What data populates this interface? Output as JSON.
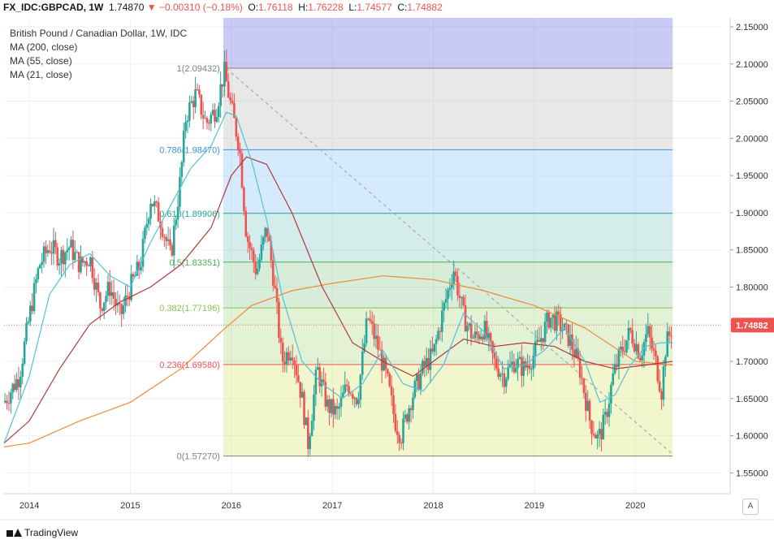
{
  "header": {
    "symbol": "FX_IDC:GBPCAD, 1W",
    "last": "1.74870",
    "change": "−0.00310 (−0.18%)",
    "open_label": "O:",
    "open": "1.76118",
    "high_label": "H:",
    "high": "1.76228",
    "low_label": "L:",
    "low": "1.74577",
    "close_label": "C:",
    "close": "1.74882"
  },
  "legend": {
    "title": "British Pound / Canadian Dollar, 1W, IDC",
    "ma200": "MA (200, close)",
    "ma55": "MA (55, close)",
    "ma21": "MA (21, close)"
  },
  "branding": {
    "name": "TradingView",
    "logo_icon": "tradingview-logo-icon"
  },
  "controls": {
    "auto_scale": "A"
  },
  "colors": {
    "up": "#26a69a",
    "down": "#ef5350",
    "ma200": "#f0883e",
    "ma55": "#b03a3a",
    "ma21": "#4fc3d9",
    "fib_lines": [
      "#8e8e8e",
      "#ef5350",
      "#8bc34a",
      "#4caf50",
      "#26a69a",
      "#3f8fd6",
      "#7c7c7c"
    ],
    "price_tag": "#ef5350"
  },
  "chart_data": {
    "type": "candlestick",
    "title": "British Pound / Canadian Dollar, 1W, IDC",
    "x_tick_labels": [
      "2014",
      "2015",
      "2016",
      "2017",
      "2018",
      "2019",
      "2020"
    ],
    "x_tick_years": [
      2014,
      2015,
      2016,
      2017,
      2018,
      2019,
      2020
    ],
    "x_range": [
      2013.75,
      2020.85
    ],
    "y_tick_labels": [
      "1.55000",
      "1.60000",
      "1.65000",
      "1.70000",
      "1.75000",
      "1.80000",
      "1.85000",
      "1.90000",
      "1.95000",
      "2.00000",
      "2.05000",
      "2.10000",
      "2.15000"
    ],
    "y_ticks": [
      1.55,
      1.6,
      1.65,
      1.7,
      1.75,
      1.8,
      1.85,
      1.9,
      1.95,
      2.0,
      2.05,
      2.1,
      2.15
    ],
    "ylim": [
      1.522,
      2.162
    ],
    "last_price_label": "1.74882",
    "last_price": 1.74882,
    "fibonacci": {
      "levels": [
        {
          "ratio": "1",
          "price": 2.09432,
          "label": "1(2.09432)"
        },
        {
          "ratio": "0.786",
          "price": 1.9847,
          "label": "0.786(1.98470)"
        },
        {
          "ratio": "0.618",
          "price": 1.89906,
          "label": "0.618(1.89906)"
        },
        {
          "ratio": "0.5",
          "price": 1.83351,
          "label": "0.5(1.83351)"
        },
        {
          "ratio": "0.382",
          "price": 1.77196,
          "label": "0.382(1.77196)"
        },
        {
          "ratio": "0.236",
          "price": 1.6958,
          "label": "0.236(1.69580)"
        },
        {
          "ratio": "0",
          "price": 1.5727,
          "label": "0(1.57270)"
        }
      ],
      "x_start": 2015.92,
      "x_end": 2020.37,
      "zone_colors": [
        "rgba(180,180,180,0.30)",
        "rgba(66,165,245,0.22)",
        "rgba(38,166,154,0.20)",
        "rgba(76,175,80,0.22)",
        "rgba(139,195,74,0.24)",
        "rgba(205,220,57,0.25)",
        "rgba(239,83,80,0.25)"
      ],
      "top_zone_color": "rgba(103,103,230,0.35)",
      "top_zone_ceiling": 2.162
    },
    "trendline": {
      "x": [
        2015.95,
        2020.37
      ],
      "y": [
        2.094,
        1.575
      ]
    },
    "price_path": [
      [
        2013.75,
        1.645
      ],
      [
        2013.9,
        1.68
      ],
      [
        2014.0,
        1.76
      ],
      [
        2014.1,
        1.83
      ],
      [
        2014.2,
        1.855
      ],
      [
        2014.3,
        1.84
      ],
      [
        2014.4,
        1.855
      ],
      [
        2014.5,
        1.83
      ],
      [
        2014.6,
        1.84
      ],
      [
        2014.7,
        1.775
      ],
      [
        2014.8,
        1.8
      ],
      [
        2014.9,
        1.76
      ],
      [
        2015.0,
        1.8
      ],
      [
        2015.1,
        1.83
      ],
      [
        2015.2,
        1.92
      ],
      [
        2015.3,
        1.89
      ],
      [
        2015.4,
        1.84
      ],
      [
        2015.5,
        1.95
      ],
      [
        2015.55,
        2.03
      ],
      [
        2015.65,
        2.06
      ],
      [
        2015.75,
        2.02
      ],
      [
        2015.85,
        2.04
      ],
      [
        2015.93,
        2.09
      ],
      [
        2016.0,
        2.04
      ],
      [
        2016.08,
        1.99
      ],
      [
        2016.15,
        1.87
      ],
      [
        2016.25,
        1.82
      ],
      [
        2016.35,
        1.88
      ],
      [
        2016.42,
        1.81
      ],
      [
        2016.5,
        1.7
      ],
      [
        2016.6,
        1.72
      ],
      [
        2016.7,
        1.65
      ],
      [
        2016.76,
        1.59
      ],
      [
        2016.85,
        1.69
      ],
      [
        2016.95,
        1.64
      ],
      [
        2017.05,
        1.63
      ],
      [
        2017.15,
        1.67
      ],
      [
        2017.25,
        1.65
      ],
      [
        2017.35,
        1.76
      ],
      [
        2017.45,
        1.72
      ],
      [
        2017.55,
        1.67
      ],
      [
        2017.62,
        1.62
      ],
      [
        2017.68,
        1.6
      ],
      [
        2017.78,
        1.65
      ],
      [
        2017.9,
        1.69
      ],
      [
        2018.0,
        1.71
      ],
      [
        2018.1,
        1.77
      ],
      [
        2018.2,
        1.825
      ],
      [
        2018.3,
        1.76
      ],
      [
        2018.4,
        1.73
      ],
      [
        2018.5,
        1.745
      ],
      [
        2018.6,
        1.7
      ],
      [
        2018.7,
        1.68
      ],
      [
        2018.8,
        1.7
      ],
      [
        2018.9,
        1.69
      ],
      [
        2019.0,
        1.71
      ],
      [
        2019.15,
        1.76
      ],
      [
        2019.25,
        1.75
      ],
      [
        2019.35,
        1.73
      ],
      [
        2019.45,
        1.69
      ],
      [
        2019.55,
        1.62
      ],
      [
        2019.63,
        1.595
      ],
      [
        2019.7,
        1.62
      ],
      [
        2019.78,
        1.68
      ],
      [
        2019.85,
        1.71
      ],
      [
        2019.95,
        1.74
      ],
      [
        2020.05,
        1.71
      ],
      [
        2020.12,
        1.74
      ],
      [
        2020.2,
        1.7
      ],
      [
        2020.26,
        1.66
      ],
      [
        2020.3,
        1.72
      ],
      [
        2020.37,
        1.749
      ]
    ],
    "series": [
      {
        "name": "MA (200, close)",
        "x": [
          2013.75,
          2014.0,
          2014.5,
          2015.0,
          2015.5,
          2015.9,
          2016.2,
          2016.6,
          2017.0,
          2017.5,
          2018.0,
          2018.5,
          2019.0,
          2019.5,
          2020.0,
          2020.37
        ],
        "y": [
          1.585,
          1.59,
          1.62,
          1.645,
          1.69,
          1.74,
          1.775,
          1.795,
          1.805,
          1.815,
          1.81,
          1.795,
          1.775,
          1.745,
          1.7,
          1.695
        ]
      },
      {
        "name": "MA (55, close)",
        "x": [
          2013.75,
          2014.0,
          2014.3,
          2014.6,
          2014.9,
          2015.2,
          2015.5,
          2015.8,
          2016.0,
          2016.15,
          2016.35,
          2016.6,
          2016.9,
          2017.2,
          2017.5,
          2017.8,
          2018.0,
          2018.3,
          2018.6,
          2018.9,
          2019.2,
          2019.5,
          2019.8,
          2020.1,
          2020.37
        ],
        "y": [
          1.59,
          1.62,
          1.69,
          1.75,
          1.78,
          1.8,
          1.83,
          1.88,
          1.95,
          1.975,
          1.965,
          1.9,
          1.8,
          1.725,
          1.7,
          1.68,
          1.7,
          1.73,
          1.72,
          1.725,
          1.72,
          1.7,
          1.69,
          1.695,
          1.7
        ]
      },
      {
        "name": "MA (21, close)",
        "x": [
          2013.75,
          2014.0,
          2014.2,
          2014.4,
          2014.6,
          2014.8,
          2015.0,
          2015.2,
          2015.4,
          2015.6,
          2015.8,
          2015.95,
          2016.05,
          2016.2,
          2016.35,
          2016.5,
          2016.7,
          2016.9,
          2017.1,
          2017.3,
          2017.5,
          2017.7,
          2017.9,
          2018.1,
          2018.3,
          2018.5,
          2018.7,
          2018.9,
          2019.1,
          2019.3,
          2019.5,
          2019.65,
          2019.8,
          2019.95,
          2020.1,
          2020.25,
          2020.37
        ],
        "y": [
          1.59,
          1.68,
          1.79,
          1.83,
          1.845,
          1.815,
          1.8,
          1.86,
          1.91,
          1.96,
          1.99,
          2.035,
          2.03,
          1.97,
          1.89,
          1.79,
          1.7,
          1.67,
          1.65,
          1.67,
          1.715,
          1.67,
          1.66,
          1.695,
          1.765,
          1.74,
          1.69,
          1.695,
          1.715,
          1.745,
          1.7,
          1.645,
          1.655,
          1.695,
          1.72,
          1.725,
          1.725
        ]
      }
    ]
  }
}
